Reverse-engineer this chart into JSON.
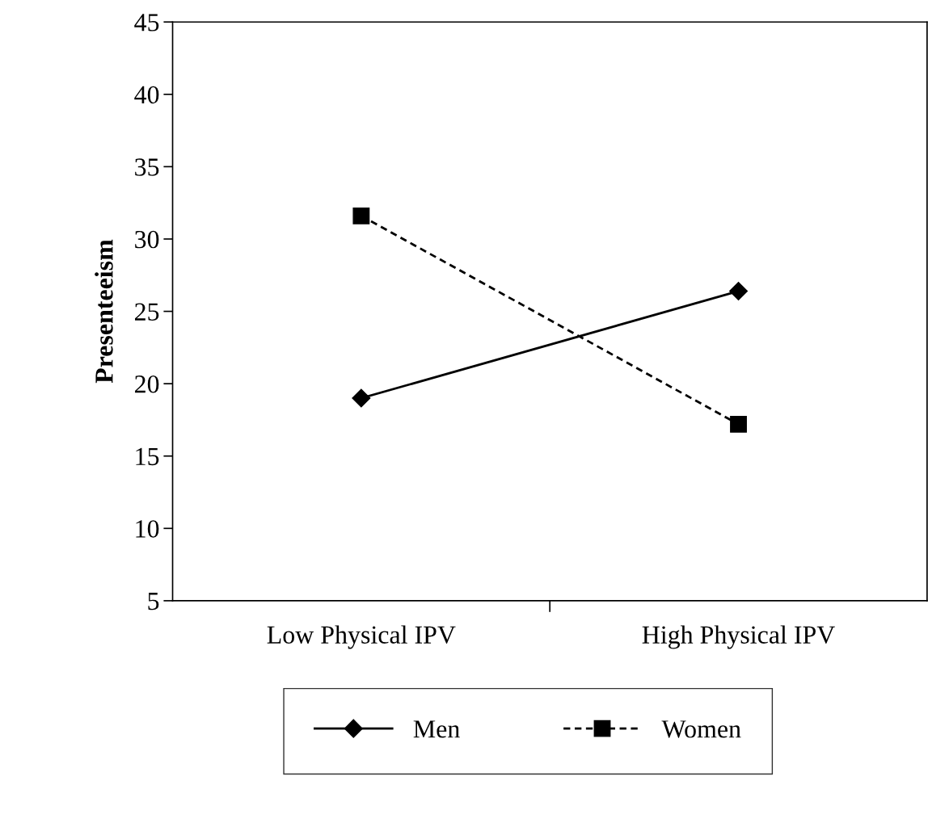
{
  "chart_data": {
    "type": "line",
    "ylabel": "Presenteeism",
    "categories": [
      "Low Physical IPV",
      "High Physical IPV"
    ],
    "series": [
      {
        "name": "Men",
        "color": "#000000",
        "values": [
          19.0,
          26.4
        ],
        "marker": "diamond",
        "line_style": "solid"
      },
      {
        "name": "Women",
        "color": "#000000",
        "values": [
          31.6,
          17.2
        ],
        "marker": "square",
        "line_style": "dashed"
      }
    ],
    "ylim": [
      5,
      45
    ],
    "yticks": [
      5,
      10,
      15,
      20,
      25,
      30,
      35,
      40,
      45
    ],
    "grid": false,
    "legend": "bottom"
  }
}
